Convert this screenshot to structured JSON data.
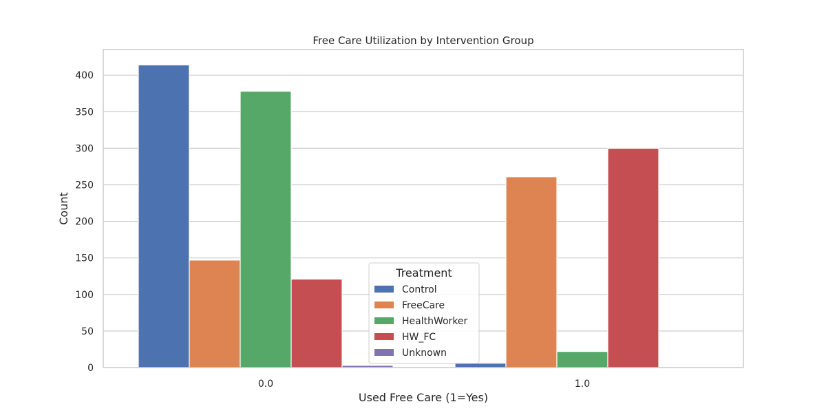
{
  "chart_data": {
    "type": "bar",
    "title": "Free Care Utilization by Intervention Group",
    "xlabel": "Used Free Care (1=Yes)",
    "ylabel": "Count",
    "categories": [
      "0.0",
      "1.0"
    ],
    "ylim": [
      0,
      435
    ],
    "yticks": [
      0,
      50,
      100,
      150,
      200,
      250,
      300,
      350,
      400
    ],
    "grid": true,
    "legend": {
      "title": "Treatment",
      "placement": "bottom-center"
    },
    "series": [
      {
        "name": "Control",
        "color": "#4c72b0",
        "values": [
          414,
          6
        ]
      },
      {
        "name": "FreeCare",
        "color": "#dd8452",
        "values": [
          147,
          261
        ]
      },
      {
        "name": "HealthWorker",
        "color": "#55a868",
        "values": [
          378,
          22
        ]
      },
      {
        "name": "HW_FC",
        "color": "#c44e52",
        "values": [
          121,
          300
        ]
      },
      {
        "name": "Unknown",
        "color": "#8172b3",
        "values": [
          3,
          0
        ]
      }
    ]
  }
}
